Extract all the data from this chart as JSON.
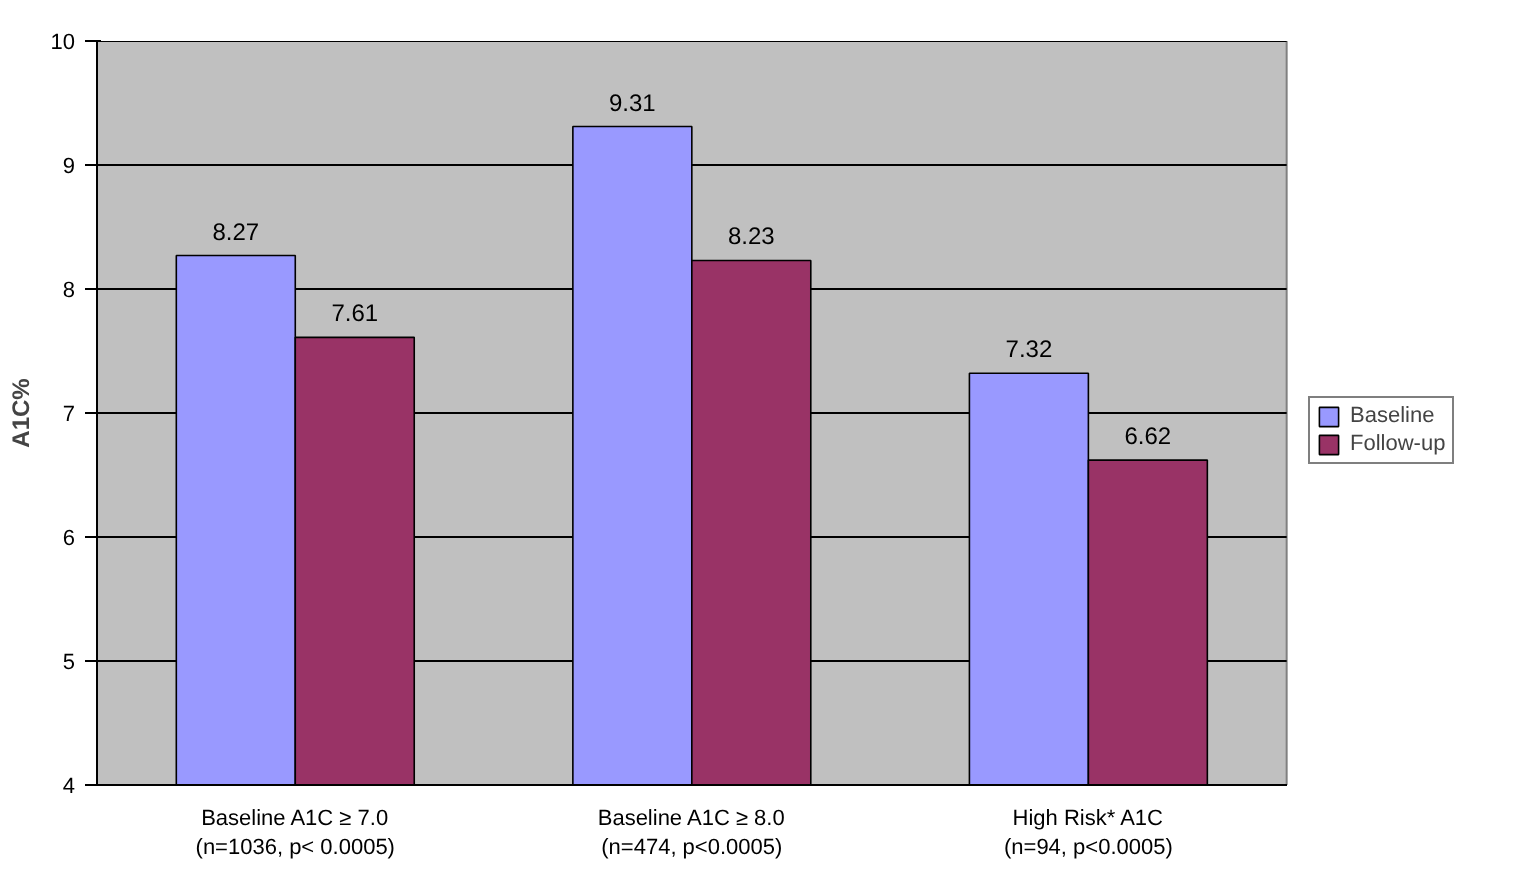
{
  "chart_data": {
    "type": "bar",
    "ylabel": "A1C%",
    "categories": [
      "Baseline A1C ≥ 7.0\n(n=1036, p< 0.0005)",
      "Baseline A1C ≥ 8.0\n(n=474, p<0.0005)",
      "High Risk* A1C\n(n=94, p<0.0005)"
    ],
    "series": [
      {
        "name": "Baseline",
        "color": "#9999ff",
        "values": [
          8.27,
          9.31,
          7.32
        ]
      },
      {
        "name": "Follow-up",
        "color": "#993366",
        "values": [
          7.61,
          8.23,
          6.62
        ]
      }
    ],
    "ylim": [
      4,
      10
    ],
    "yticks": [
      4,
      5,
      6,
      7,
      8,
      9,
      10
    ],
    "grid": "y",
    "legend": "right",
    "data_labels": true
  }
}
